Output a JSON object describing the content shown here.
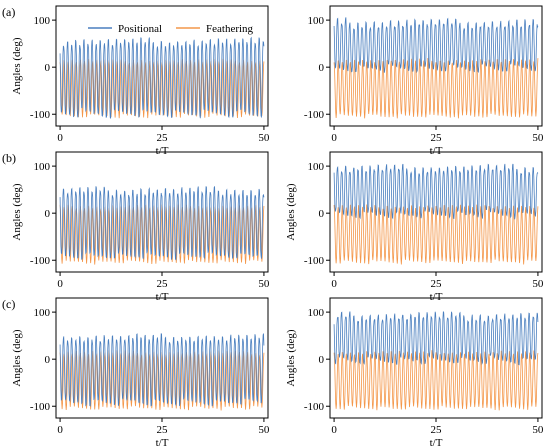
{
  "figure": {
    "panel_labels": [
      "(a)",
      "(b)",
      "(c)"
    ],
    "legend": {
      "placement": "top-center (panel a-left)",
      "entries": [
        "Positional",
        "Feathering"
      ]
    }
  },
  "colors": {
    "positional": "#4a7fbf",
    "feathering": "#f4974a"
  },
  "chart_data": [
    {
      "type": "line",
      "row": 0,
      "col": 0,
      "xlabel": "t/T",
      "ylabel": "Angles (deg)",
      "xlim": [
        -1,
        51
      ],
      "ylim": [
        -125,
        130
      ],
      "xticks": [
        0,
        25,
        50
      ],
      "yticks": [
        -100,
        0,
        100
      ],
      "grid": false,
      "cycles": 50,
      "series": [
        {
          "name": "Positional",
          "peak_range": [
            45,
            65
          ],
          "trough_range": [
            -110,
            -90
          ]
        },
        {
          "name": "Feathering",
          "peak_range": [
            10,
            18
          ],
          "trough_range": [
            -108,
            -100
          ]
        }
      ]
    },
    {
      "type": "line",
      "row": 0,
      "col": 1,
      "xlabel": "t/T",
      "ylabel": "",
      "xlim": [
        -1,
        51
      ],
      "ylim": [
        -125,
        130
      ],
      "xticks": [
        0,
        25,
        50
      ],
      "yticks": [
        -100,
        0,
        100
      ],
      "grid": false,
      "cycles": 50,
      "series": [
        {
          "name": "Positional",
          "peak_range": [
            82,
            105
          ],
          "trough_range": [
            -12,
            5
          ]
        },
        {
          "name": "Feathering",
          "peak_range": [
            10,
            18
          ],
          "trough_range": [
            -108,
            -100
          ]
        }
      ]
    },
    {
      "type": "line",
      "row": 1,
      "col": 0,
      "xlabel": "t/T",
      "ylabel": "Angles (deg)",
      "xlim": [
        -1,
        51
      ],
      "ylim": [
        -125,
        130
      ],
      "xticks": [
        0,
        25,
        50
      ],
      "yticks": [
        -100,
        0,
        100
      ],
      "grid": false,
      "cycles": 50,
      "series": [
        {
          "name": "Positional",
          "peak_range": [
            38,
            58
          ],
          "trough_range": [
            -100,
            -85
          ]
        },
        {
          "name": "Feathering",
          "peak_range": [
            10,
            18
          ],
          "trough_range": [
            -108,
            -100
          ]
        }
      ]
    },
    {
      "type": "line",
      "row": 1,
      "col": 1,
      "xlabel": "t/T",
      "ylabel": "Angles (deg)",
      "xlim": [
        -1,
        51
      ],
      "ylim": [
        -125,
        130
      ],
      "xticks": [
        0,
        25,
        50
      ],
      "yticks": [
        -100,
        0,
        100
      ],
      "grid": false,
      "cycles": 50,
      "series": [
        {
          "name": "Positional",
          "peak_range": [
            85,
            105
          ],
          "trough_range": [
            -12,
            5
          ]
        },
        {
          "name": "Feathering",
          "peak_range": [
            10,
            18
          ],
          "trough_range": [
            -108,
            -100
          ]
        }
      ]
    },
    {
      "type": "line",
      "row": 2,
      "col": 0,
      "xlabel": "t/T",
      "ylabel": "Angles (deg)",
      "xlim": [
        -1,
        51
      ],
      "ylim": [
        -125,
        130
      ],
      "xticks": [
        0,
        25,
        50
      ],
      "yticks": [
        -100,
        0,
        100
      ],
      "grid": false,
      "cycles": 50,
      "series": [
        {
          "name": "Positional",
          "peak_range": [
            38,
            55
          ],
          "trough_range": [
            -100,
            -85
          ]
        },
        {
          "name": "Feathering",
          "peak_range": [
            10,
            18
          ],
          "trough_range": [
            -108,
            -100
          ]
        }
      ]
    },
    {
      "type": "line",
      "row": 2,
      "col": 1,
      "xlabel": "t/T",
      "ylabel": "Angles (deg)",
      "xlim": [
        -1,
        51
      ],
      "ylim": [
        -125,
        130
      ],
      "xticks": [
        0,
        25,
        50
      ],
      "yticks": [
        -100,
        0,
        100
      ],
      "grid": false,
      "cycles": 50,
      "series": [
        {
          "name": "Positional",
          "peak_range": [
            82,
            103
          ],
          "trough_range": [
            -12,
            5
          ]
        },
        {
          "name": "Feathering",
          "peak_range": [
            10,
            18
          ],
          "trough_range": [
            -108,
            -100
          ]
        }
      ]
    }
  ]
}
